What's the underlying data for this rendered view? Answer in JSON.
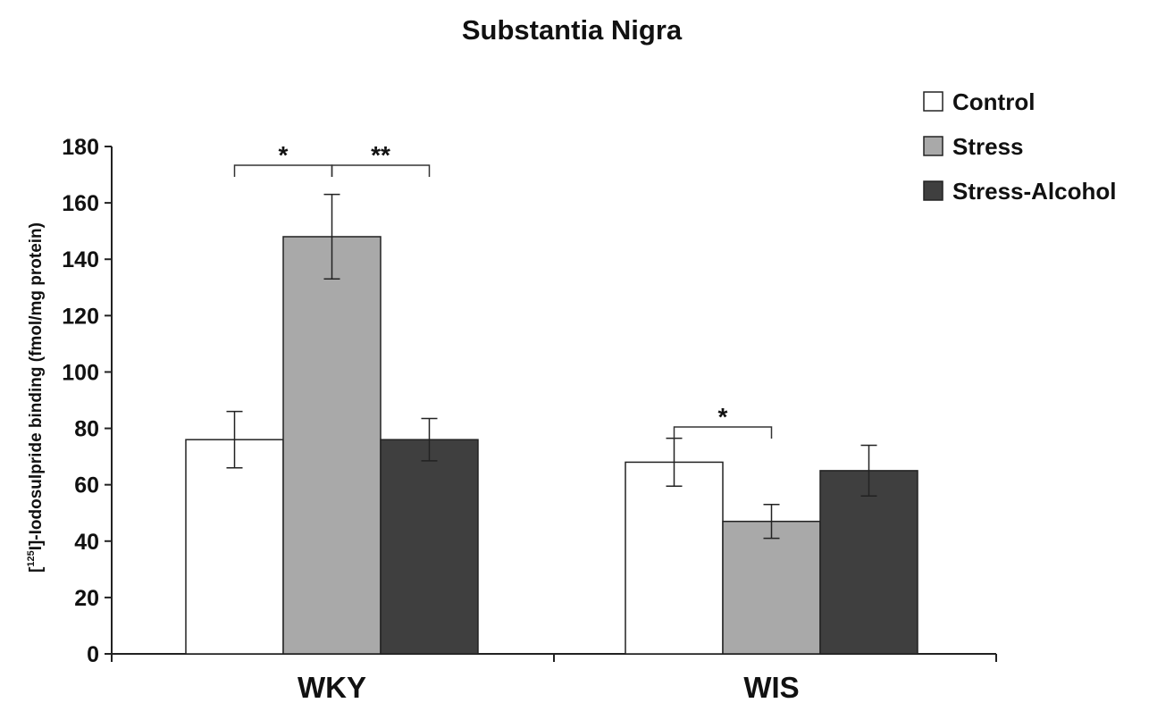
{
  "chart_data": {
    "type": "bar",
    "title": "Substantia Nigra",
    "ylabel": {
      "prefix": "[",
      "superscript": "125",
      "suffix": "I]-Iodosulpride binding (fmol/mg protein)"
    },
    "xlabel": "",
    "ylim": [
      0,
      180
    ],
    "yticks": [
      "0",
      "20",
      "40",
      "60",
      "80",
      "100",
      "120",
      "140",
      "160",
      "180"
    ],
    "categories": [
      "WKY",
      "WIS"
    ],
    "series": [
      {
        "name": "Control",
        "color": "#ffffff",
        "values": [
          76,
          68
        ],
        "errors": [
          10,
          8.5
        ]
      },
      {
        "name": "Stress",
        "color": "#a9a9a9",
        "values": [
          148,
          47
        ],
        "errors": [
          15,
          6
        ]
      },
      {
        "name": "Stress-Alcohol",
        "color": "#3f3f3f",
        "values": [
          76,
          65
        ],
        "errors": [
          7.5,
          9
        ]
      }
    ],
    "legend_position": "top-right",
    "significance": [
      {
        "category": 0,
        "from_series": 0,
        "to_series": 1,
        "label": "*"
      },
      {
        "category": 0,
        "from_series": 1,
        "to_series": 2,
        "label": "**"
      },
      {
        "category": 1,
        "from_series": 0,
        "to_series": 1,
        "label": "*"
      }
    ]
  }
}
